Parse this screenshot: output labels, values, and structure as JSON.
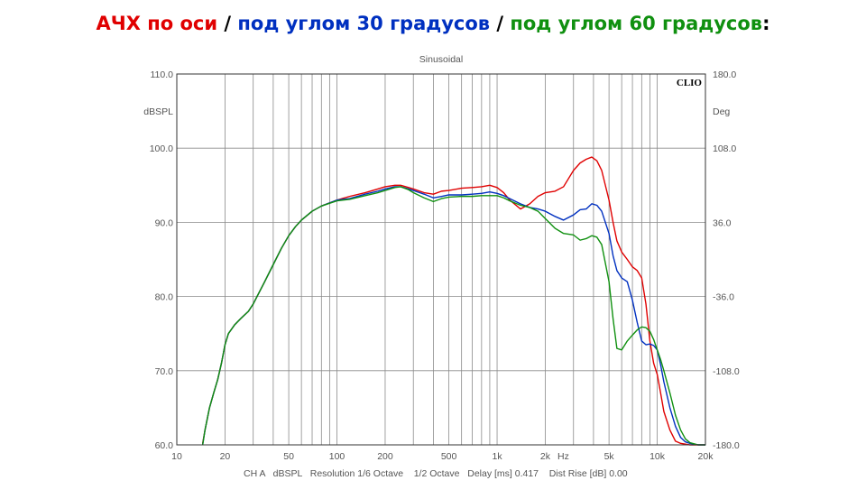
{
  "heading": [
    {
      "text": "АЧХ по оси",
      "color": "#e00000"
    },
    {
      "text": " / ",
      "color": "#000000"
    },
    {
      "text": "под углом 30 градусов",
      "color": "#0030c0"
    },
    {
      "text": " / ",
      "color": "#000000"
    },
    {
      "text": "под углом 60 градусов",
      "color": "#109010"
    },
    {
      "text": ":",
      "color": "#000000"
    }
  ],
  "chart_data": {
    "type": "line",
    "title": "Sinusoidal",
    "logo": "CLIO",
    "ylabel": "dBSPL",
    "ylabel_right": "Deg",
    "xlabel": "Hz",
    "footer": "CH A   dBSPL   Resolution 1/6 Octave    1/2 Octave   Delay [ms] 0.417    Dist Rise [dB] 0.00",
    "x_scale": "log",
    "xlim": [
      10,
      20000
    ],
    "ylim": [
      60,
      110
    ],
    "ylim_right": [
      -180,
      180
    ],
    "x_ticks": [
      {
        "value": 10,
        "label": "10"
      },
      {
        "value": 20,
        "label": "20"
      },
      {
        "value": 50,
        "label": "50"
      },
      {
        "value": 100,
        "label": "100"
      },
      {
        "value": 200,
        "label": "200"
      },
      {
        "value": 500,
        "label": "500"
      },
      {
        "value": 1000,
        "label": "1k"
      },
      {
        "value": 2000,
        "label": "2k"
      },
      {
        "value": 5000,
        "label": "5k"
      },
      {
        "value": 10000,
        "label": "10k"
      },
      {
        "value": 20000,
        "label": "20k"
      }
    ],
    "y_ticks": [
      {
        "value": 60,
        "label": "60.0"
      },
      {
        "value": 70,
        "label": "70.0"
      },
      {
        "value": 80,
        "label": "80.0"
      },
      {
        "value": 90,
        "label": "90.0"
      },
      {
        "value": 100,
        "label": "100.0"
      },
      {
        "value": 110,
        "label": "110.0"
      }
    ],
    "y_ticks_right": [
      {
        "value": -180,
        "label": "-180.0"
      },
      {
        "value": -108,
        "label": "-108.0"
      },
      {
        "value": -36,
        "label": "-36.0"
      },
      {
        "value": 36,
        "label": "36.0"
      },
      {
        "value": 108,
        "label": "108.0"
      },
      {
        "value": 180,
        "label": "180.0"
      }
    ],
    "grid": true,
    "series": [
      {
        "color": "#e00000",
        "x": [
          14.5,
          15,
          16,
          17,
          18,
          19,
          20,
          21,
          23,
          25,
          28,
          30,
          35,
          40,
          45,
          50,
          55,
          60,
          70,
          80,
          100,
          120,
          150,
          180,
          200,
          230,
          250,
          280,
          300,
          350,
          400,
          450,
          500,
          600,
          700,
          800,
          900,
          1000,
          1100,
          1200,
          1400,
          1600,
          1800,
          2000,
          2300,
          2600,
          3000,
          3300,
          3600,
          3900,
          4200,
          4500,
          5000,
          5300,
          5600,
          6000,
          6500,
          7000,
          7500,
          8000,
          8500,
          9000,
          9500,
          10000,
          10500,
          11000,
          12000,
          13000,
          14000,
          15000,
          16000,
          18000,
          20000
        ],
        "y": [
          60.2,
          62.0,
          65.0,
          67.0,
          68.8,
          71.0,
          73.5,
          75.0,
          76.2,
          77.0,
          78.0,
          79.0,
          81.8,
          84.3,
          86.5,
          88.2,
          89.4,
          90.3,
          91.5,
          92.2,
          93.0,
          93.5,
          94.0,
          94.5,
          94.8,
          95.0,
          95.0,
          94.7,
          94.5,
          94.0,
          93.8,
          94.2,
          94.3,
          94.6,
          94.7,
          94.8,
          95.0,
          94.7,
          94.0,
          93.0,
          91.8,
          92.5,
          93.5,
          94.0,
          94.2,
          94.8,
          97.0,
          98.0,
          98.5,
          98.8,
          98.3,
          97.0,
          93.0,
          90.0,
          87.5,
          86.0,
          85.0,
          84.0,
          83.5,
          82.5,
          79.0,
          74.0,
          71.0,
          69.5,
          67.0,
          64.5,
          62.0,
          60.5,
          60.2,
          60.1,
          60.0,
          60.0,
          60.0
        ]
      },
      {
        "color": "#0030c0",
        "x": [
          14.5,
          15,
          16,
          17,
          18,
          19,
          20,
          21,
          23,
          25,
          28,
          30,
          35,
          40,
          45,
          50,
          55,
          60,
          70,
          80,
          100,
          120,
          150,
          180,
          200,
          230,
          250,
          280,
          300,
          350,
          400,
          450,
          500,
          600,
          700,
          800,
          900,
          1000,
          1100,
          1200,
          1400,
          1600,
          1800,
          2000,
          2300,
          2600,
          3000,
          3300,
          3600,
          3900,
          4200,
          4500,
          5000,
          5300,
          5600,
          6000,
          6500,
          7000,
          7500,
          8000,
          8500,
          9000,
          9500,
          10000,
          10500,
          11000,
          12000,
          13000,
          14000,
          15000,
          16000,
          18000,
          20000
        ],
        "y": [
          60.0,
          62.0,
          65.0,
          67.0,
          68.8,
          71.0,
          73.5,
          75.0,
          76.2,
          77.0,
          78.0,
          79.0,
          81.8,
          84.3,
          86.5,
          88.2,
          89.4,
          90.3,
          91.5,
          92.2,
          93.0,
          93.2,
          93.8,
          94.2,
          94.5,
          94.8,
          94.8,
          94.5,
          94.3,
          93.8,
          93.3,
          93.5,
          93.7,
          93.7,
          93.8,
          93.9,
          94.1,
          93.9,
          93.6,
          93.2,
          92.5,
          92.0,
          91.8,
          91.5,
          90.8,
          90.3,
          91.0,
          91.7,
          91.8,
          92.5,
          92.3,
          91.5,
          88.5,
          85.5,
          83.5,
          82.5,
          82.0,
          79.5,
          76.5,
          74.0,
          73.5,
          73.6,
          73.4,
          72.8,
          70.8,
          68.5,
          65.0,
          62.5,
          61.0,
          60.4,
          60.2,
          60.0,
          60.0
        ]
      },
      {
        "color": "#109010",
        "x": [
          14.5,
          15,
          16,
          17,
          18,
          19,
          20,
          21,
          23,
          25,
          28,
          30,
          35,
          40,
          45,
          50,
          55,
          60,
          70,
          80,
          100,
          120,
          150,
          180,
          200,
          230,
          250,
          280,
          300,
          350,
          400,
          450,
          500,
          600,
          700,
          800,
          900,
          1000,
          1100,
          1200,
          1400,
          1600,
          1800,
          2000,
          2300,
          2600,
          3000,
          3300,
          3600,
          3900,
          4200,
          4500,
          5000,
          5300,
          5600,
          6000,
          6500,
          7000,
          7500,
          8000,
          8500,
          9000,
          9500,
          10000,
          10500,
          11000,
          12000,
          13000,
          14000,
          15000,
          16000,
          18000,
          20000
        ],
        "y": [
          60.0,
          62.0,
          65.0,
          67.0,
          68.8,
          71.0,
          73.5,
          75.0,
          76.2,
          77.0,
          78.0,
          79.0,
          81.8,
          84.3,
          86.5,
          88.2,
          89.4,
          90.3,
          91.5,
          92.2,
          92.9,
          93.1,
          93.6,
          94.0,
          94.3,
          94.7,
          94.8,
          94.4,
          94.0,
          93.3,
          92.8,
          93.2,
          93.4,
          93.5,
          93.5,
          93.6,
          93.6,
          93.6,
          93.3,
          92.9,
          92.3,
          92.0,
          91.5,
          90.5,
          89.2,
          88.5,
          88.3,
          87.6,
          87.8,
          88.2,
          88.0,
          87.0,
          82.0,
          77.0,
          73.0,
          72.8,
          74.0,
          74.8,
          75.5,
          75.9,
          75.8,
          75.3,
          74.2,
          72.8,
          71.5,
          70.0,
          67.0,
          64.0,
          62.0,
          60.8,
          60.3,
          60.0,
          60.0
        ]
      }
    ]
  }
}
